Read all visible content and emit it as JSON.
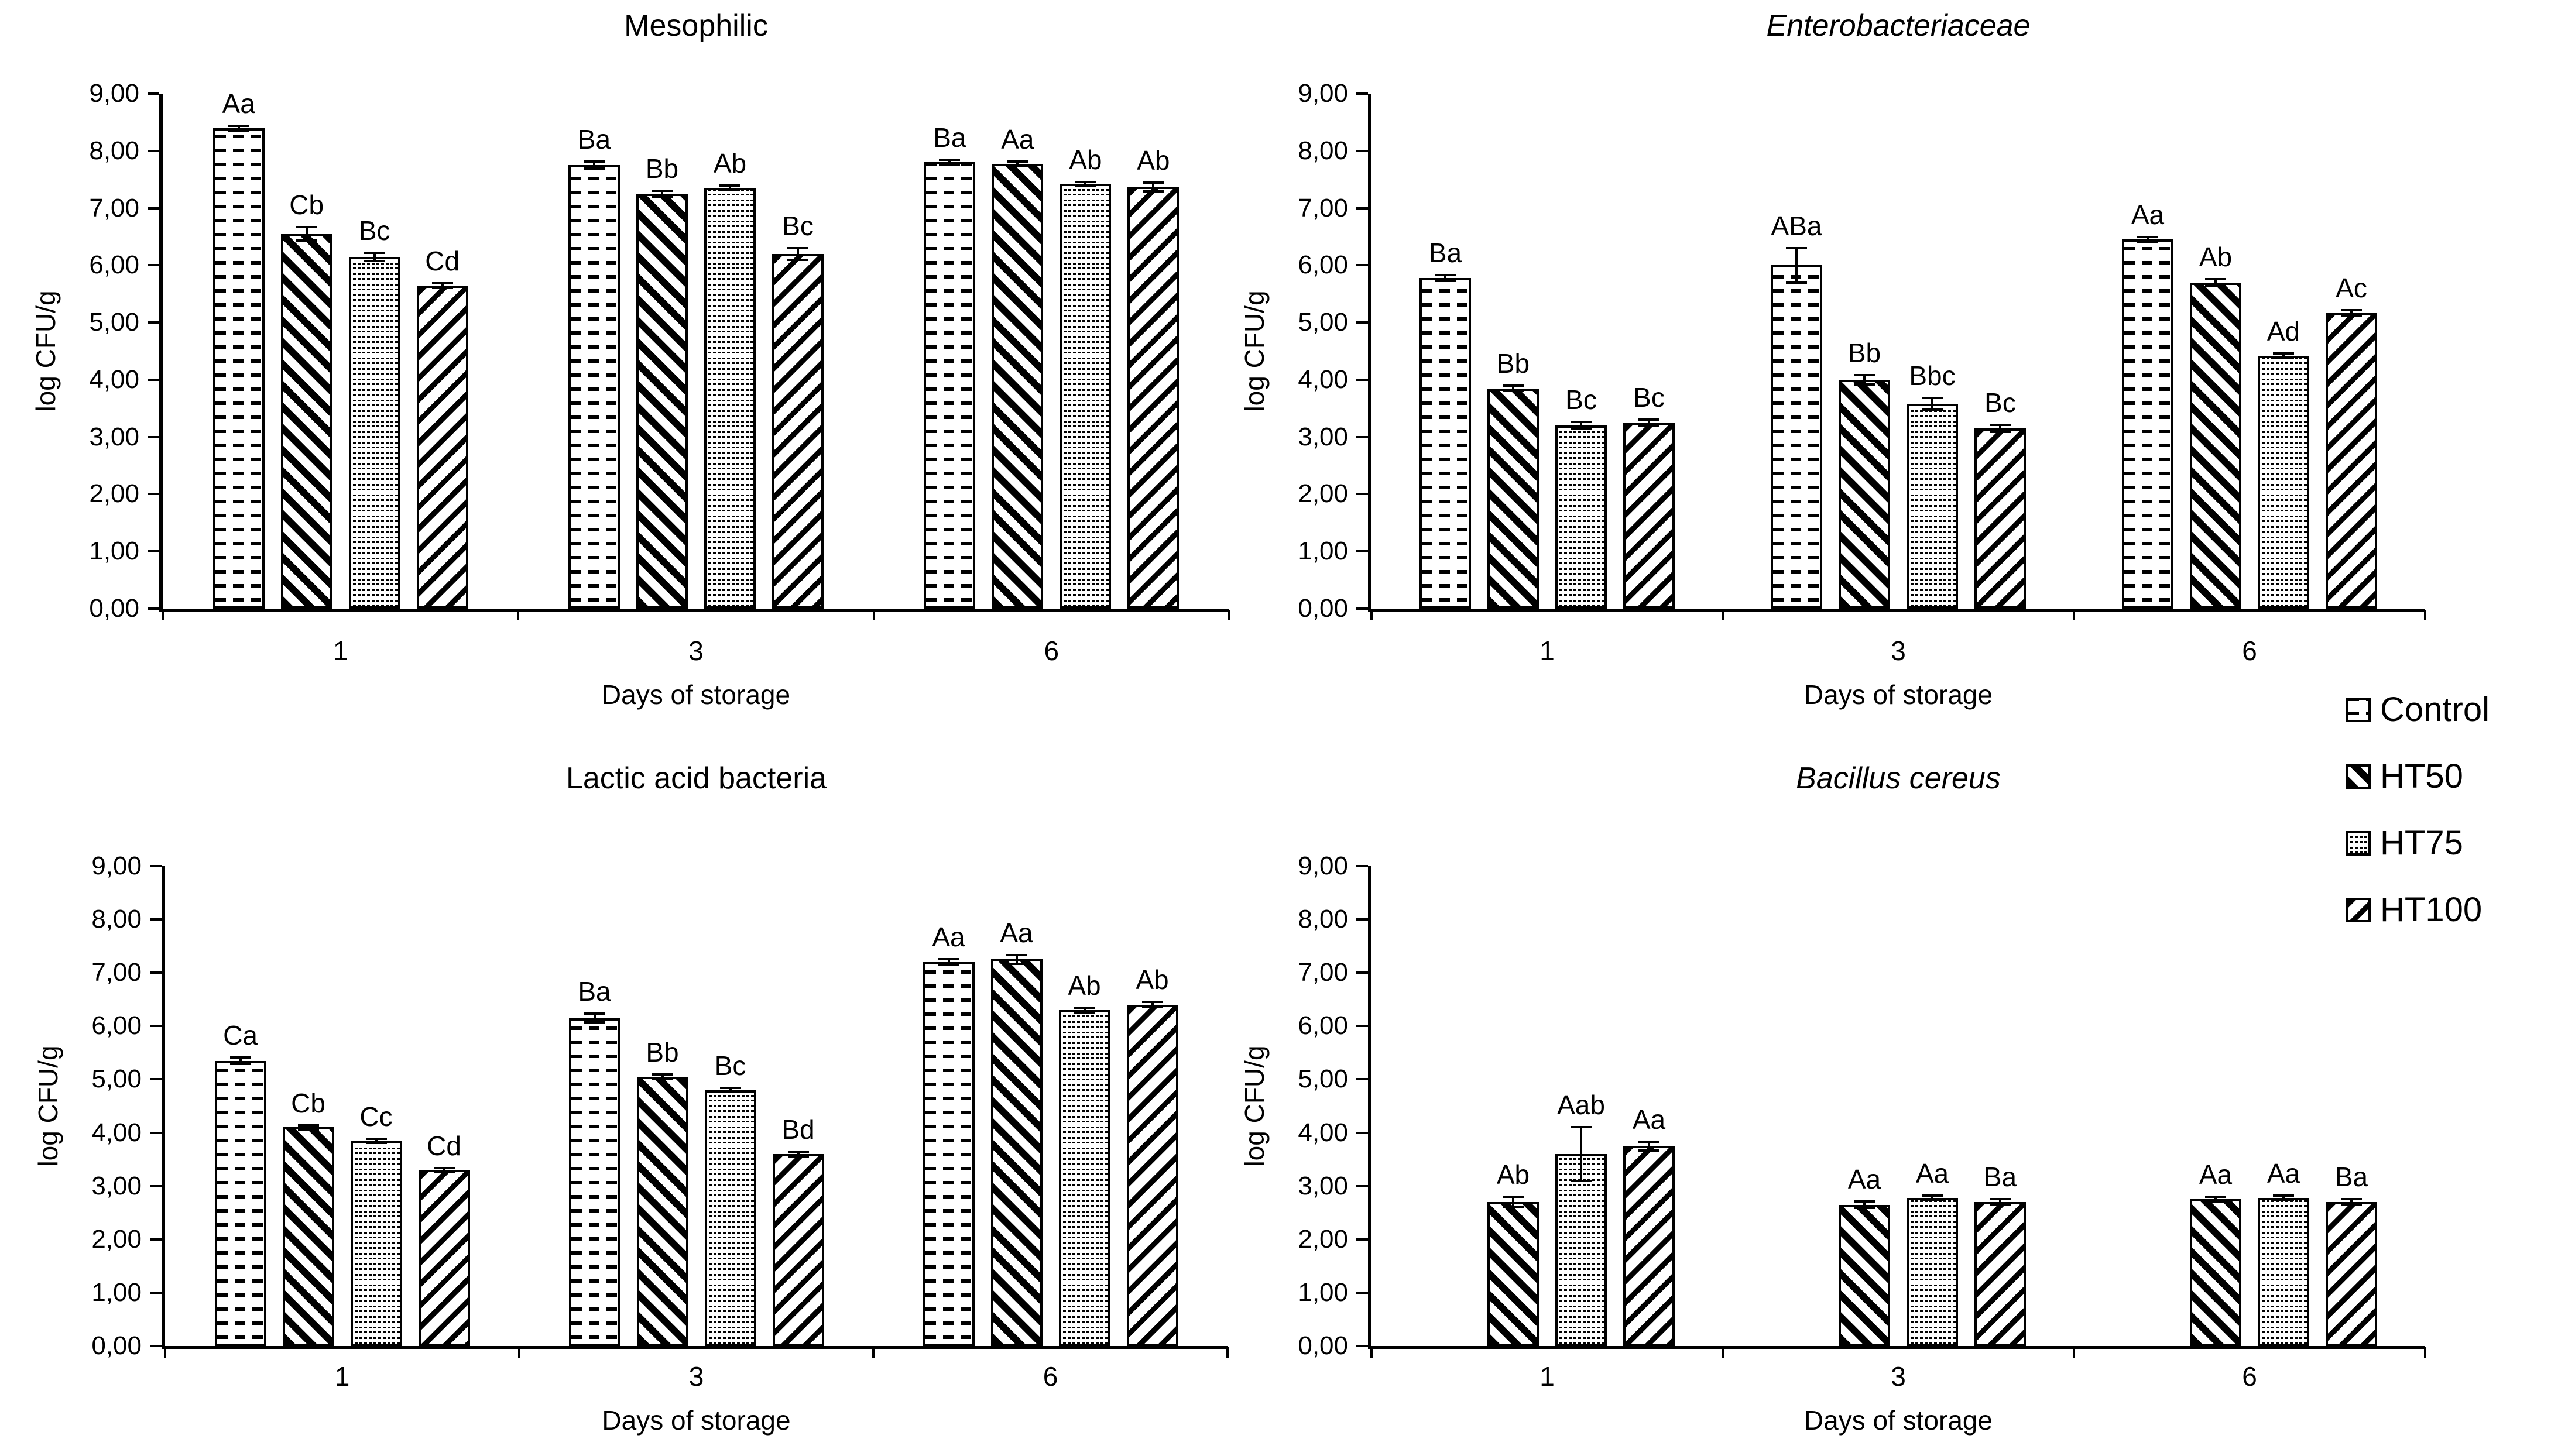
{
  "figure": {
    "background_color": "#ffffff",
    "text_color": "#000000",
    "bar_outline_color": "#000000"
  },
  "axis": {
    "y_title": "log CFU/g",
    "x_title": "Days of storage",
    "ylim": [
      0,
      9
    ],
    "y_tick_labels": [
      "9,00",
      "8,00",
      "7,00",
      "6,00",
      "5,00",
      "4,00",
      "3,00",
      "2,00",
      "1,00",
      "0,00"
    ]
  },
  "series": [
    {
      "name": "Control",
      "pattern": "horizontal-dashes"
    },
    {
      "name": "HT50",
      "pattern": "diagonal-down-stripes"
    },
    {
      "name": "HT75",
      "pattern": "wave-dots"
    },
    {
      "name": "HT100",
      "pattern": "diagonal-up-stripes"
    }
  ],
  "legend": {
    "position": "middle-right",
    "items": [
      {
        "label": "Control",
        "pattern": "horizontal-dashes"
      },
      {
        "label": "HT50",
        "pattern": "diagonal-down-stripes"
      },
      {
        "label": "HT75",
        "pattern": "wave-dots"
      },
      {
        "label": "HT100",
        "pattern": "diagonal-up-stripes"
      }
    ]
  },
  "chart_data": [
    {
      "type": "bar",
      "title": "Mesophilic",
      "title_italic": false,
      "ylabel": "log CFU/g",
      "xlabel": "Days of storage",
      "ylim": [
        0,
        9
      ],
      "grid": false,
      "categories": [
        "1",
        "3",
        "6"
      ],
      "groups": [
        {
          "category": "1",
          "bars": [
            {
              "series": "Control",
              "value": 8.4,
              "error": 0.04,
              "label": "Aa"
            },
            {
              "series": "HT50",
              "value": 6.55,
              "error": 0.12,
              "label": "Cb"
            },
            {
              "series": "HT75",
              "value": 6.15,
              "error": 0.07,
              "label": "Bc"
            },
            {
              "series": "HT100",
              "value": 5.65,
              "error": 0.04,
              "label": "Cd"
            }
          ]
        },
        {
          "category": "3",
          "bars": [
            {
              "series": "Control",
              "value": 7.75,
              "error": 0.06,
              "label": "Ba"
            },
            {
              "series": "HT50",
              "value": 7.25,
              "error": 0.05,
              "label": "Bb"
            },
            {
              "series": "HT75",
              "value": 7.35,
              "error": 0.04,
              "label": "Ab"
            },
            {
              "series": "HT100",
              "value": 6.2,
              "error": 0.1,
              "label": "Bc"
            }
          ]
        },
        {
          "category": "6",
          "bars": [
            {
              "series": "Control",
              "value": 7.8,
              "error": 0.04,
              "label": "Ba"
            },
            {
              "series": "HT50",
              "value": 7.77,
              "error": 0.04,
              "label": "Aa"
            },
            {
              "series": "HT75",
              "value": 7.42,
              "error": 0.04,
              "label": "Ab"
            },
            {
              "series": "HT100",
              "value": 7.37,
              "error": 0.08,
              "label": "Ab"
            }
          ]
        }
      ]
    },
    {
      "type": "bar",
      "title": "Enterobacteriaceae",
      "title_italic": true,
      "ylabel": "log CFU/g",
      "xlabel": "Days of storage",
      "ylim": [
        0,
        9
      ],
      "grid": false,
      "categories": [
        "1",
        "3",
        "6"
      ],
      "groups": [
        {
          "category": "1",
          "bars": [
            {
              "series": "Control",
              "value": 5.78,
              "error": 0.05,
              "label": "Ba"
            },
            {
              "series": "HT50",
              "value": 3.85,
              "error": 0.05,
              "label": "Bb"
            },
            {
              "series": "HT75",
              "value": 3.2,
              "error": 0.06,
              "label": "Bc"
            },
            {
              "series": "HT100",
              "value": 3.25,
              "error": 0.05,
              "label": "Bc"
            }
          ]
        },
        {
          "category": "3",
          "bars": [
            {
              "series": "Control",
              "value": 6.0,
              "error": 0.3,
              "label": "ABa"
            },
            {
              "series": "HT50",
              "value": 4.0,
              "error": 0.08,
              "label": "Bb"
            },
            {
              "series": "HT75",
              "value": 3.58,
              "error": 0.1,
              "label": "Bbc"
            },
            {
              "series": "HT100",
              "value": 3.15,
              "error": 0.06,
              "label": "Bc"
            }
          ]
        },
        {
          "category": "6",
          "bars": [
            {
              "series": "Control",
              "value": 6.45,
              "error": 0.04,
              "label": "Aa"
            },
            {
              "series": "HT50",
              "value": 5.7,
              "error": 0.06,
              "label": "Ab"
            },
            {
              "series": "HT75",
              "value": 4.42,
              "error": 0.04,
              "label": "Ad"
            },
            {
              "series": "HT100",
              "value": 5.17,
              "error": 0.05,
              "label": "Ac"
            }
          ]
        }
      ]
    },
    {
      "type": "bar",
      "title": "Lactic acid bacteria",
      "title_italic": false,
      "ylabel": "log CFU/g",
      "xlabel": "Days of storage",
      "ylim": [
        0,
        9
      ],
      "grid": false,
      "categories": [
        "1",
        "3",
        "6"
      ],
      "groups": [
        {
          "category": "1",
          "bars": [
            {
              "series": "Control",
              "value": 5.35,
              "error": 0.06,
              "label": "Ca"
            },
            {
              "series": "HT50",
              "value": 4.1,
              "error": 0.04,
              "label": "Cb"
            },
            {
              "series": "HT75",
              "value": 3.85,
              "error": 0.04,
              "label": "Cc"
            },
            {
              "series": "HT100",
              "value": 3.3,
              "error": 0.04,
              "label": "Cd"
            }
          ]
        },
        {
          "category": "3",
          "bars": [
            {
              "series": "Control",
              "value": 6.15,
              "error": 0.08,
              "label": "Ba"
            },
            {
              "series": "HT50",
              "value": 5.05,
              "error": 0.04,
              "label": "Bb"
            },
            {
              "series": "HT75",
              "value": 4.8,
              "error": 0.04,
              "label": "Bc"
            },
            {
              "series": "HT100",
              "value": 3.6,
              "error": 0.04,
              "label": "Bd"
            }
          ]
        },
        {
          "category": "6",
          "bars": [
            {
              "series": "Control",
              "value": 7.2,
              "error": 0.05,
              "label": "Aa"
            },
            {
              "series": "HT50",
              "value": 7.25,
              "error": 0.08,
              "label": "Aa"
            },
            {
              "series": "HT75",
              "value": 6.3,
              "error": 0.04,
              "label": "Ab"
            },
            {
              "series": "HT100",
              "value": 6.4,
              "error": 0.05,
              "label": "Ab"
            }
          ]
        }
      ]
    },
    {
      "type": "bar",
      "title": "Bacillus cereus",
      "title_italic": true,
      "ylabel": "log CFU/g",
      "xlabel": "Days of storage",
      "ylim": [
        0,
        9
      ],
      "grid": false,
      "categories": [
        "1",
        "3",
        "6"
      ],
      "groups": [
        {
          "category": "1",
          "bars": [
            {
              "series": "HT50",
              "value": 2.7,
              "error": 0.1,
              "label": "Ab"
            },
            {
              "series": "HT75",
              "value": 3.6,
              "error": 0.5,
              "label": "Aab"
            },
            {
              "series": "HT100",
              "value": 3.75,
              "error": 0.08,
              "label": "Aa"
            }
          ]
        },
        {
          "category": "3",
          "bars": [
            {
              "series": "HT50",
              "value": 2.65,
              "error": 0.06,
              "label": "Aa"
            },
            {
              "series": "HT75",
              "value": 2.78,
              "error": 0.04,
              "label": "Aa"
            },
            {
              "series": "HT100",
              "value": 2.7,
              "error": 0.05,
              "label": "Ba"
            }
          ]
        },
        {
          "category": "6",
          "bars": [
            {
              "series": "HT50",
              "value": 2.75,
              "error": 0.05,
              "label": "Aa"
            },
            {
              "series": "HT75",
              "value": 2.78,
              "error": 0.04,
              "label": "Aa"
            },
            {
              "series": "HT100",
              "value": 2.7,
              "error": 0.05,
              "label": "Ba"
            }
          ]
        }
      ]
    }
  ]
}
